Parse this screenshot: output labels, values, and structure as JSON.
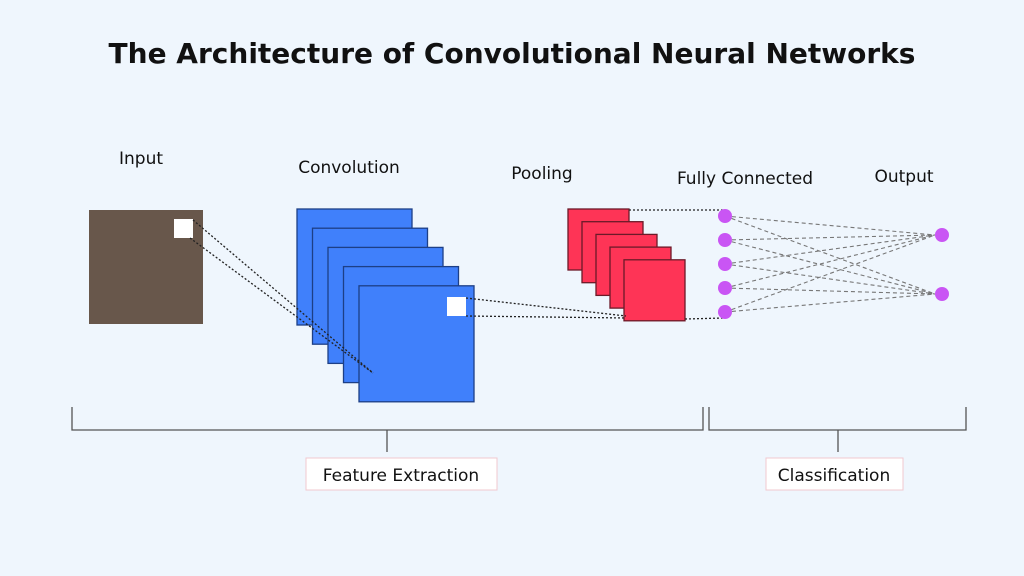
{
  "title": "The Architecture of Convolutional Neural Networks",
  "stages": {
    "input": "Input",
    "convolution": "Convolution",
    "pooling": "Pooling",
    "fully_connected": "Fully Connected",
    "output": "Output"
  },
  "groups": {
    "feature_extraction": "Feature Extraction",
    "classification": "Classification"
  },
  "colors": {
    "input": "#68574b",
    "convolution": "#4080fb",
    "pooling": "#fe3456",
    "neuron": "#c955f4",
    "background": "#eff6fd"
  },
  "counts": {
    "feature_maps": 5,
    "pooled_maps": 5,
    "fc_neurons": 5,
    "output_neurons": 2
  }
}
